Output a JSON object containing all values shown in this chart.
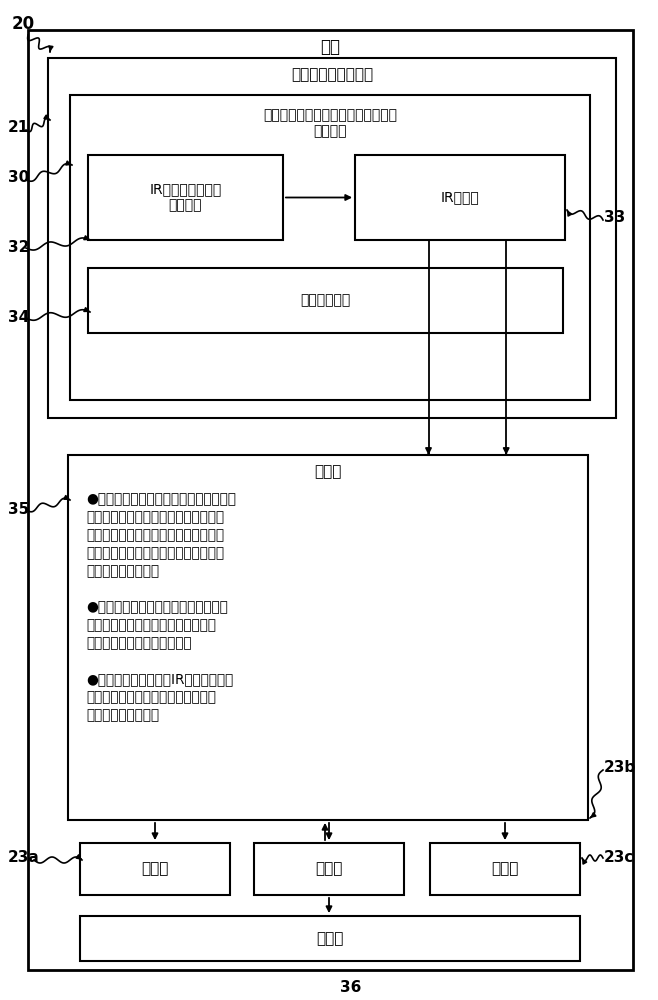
{
  "bg_color": "#ffffff",
  "line_color": "#000000",
  "text_color": "#000000",
  "fig_width": 6.58,
  "fig_height": 10.0,
  "labels": {
    "ref20": "20",
    "ref21": "21",
    "ref30": "30",
    "ref32": "32",
    "ref33": "33",
    "ref34": "34",
    "ref35": "35",
    "ref23a": "23a",
    "ref23b": "23b",
    "ref23c": "23c",
    "ref36": "36",
    "vehicle": "车辆",
    "brake_pedal": "制动踏板（脚踏的）",
    "proximity_sensor": "接近度传感器（例如，光学式、飞行\n时间式）",
    "ir_emitter": "IR发射器（例如，\n激光器）",
    "ir_sensor": "IR传感器",
    "ambient_sensor": "环境光传感器",
    "controller": "控制器",
    "bullet1": "●与接近度传感器协作，从而在制动踏板\n的脚踏操作的过程中相对于时间确定多\n个制动踏板位置（例如，基于相对于时\n间所确定的多个制动踏板位置来确定该\n制动踏板的加速度）",
    "bullet2": "●基于所确定的多个制动踏板位置（例\n如基于加速度超过阈値），选择性地\n调整该至少一个制动灯的光强",
    "bullet3": "●基于环境光来调整该IR传感器的动态\n范围（例如亮度、颜色、闪烁频率和\n额外制动灯的运行）",
    "brake_light": "制动灯",
    "memory": "存储器"
  }
}
